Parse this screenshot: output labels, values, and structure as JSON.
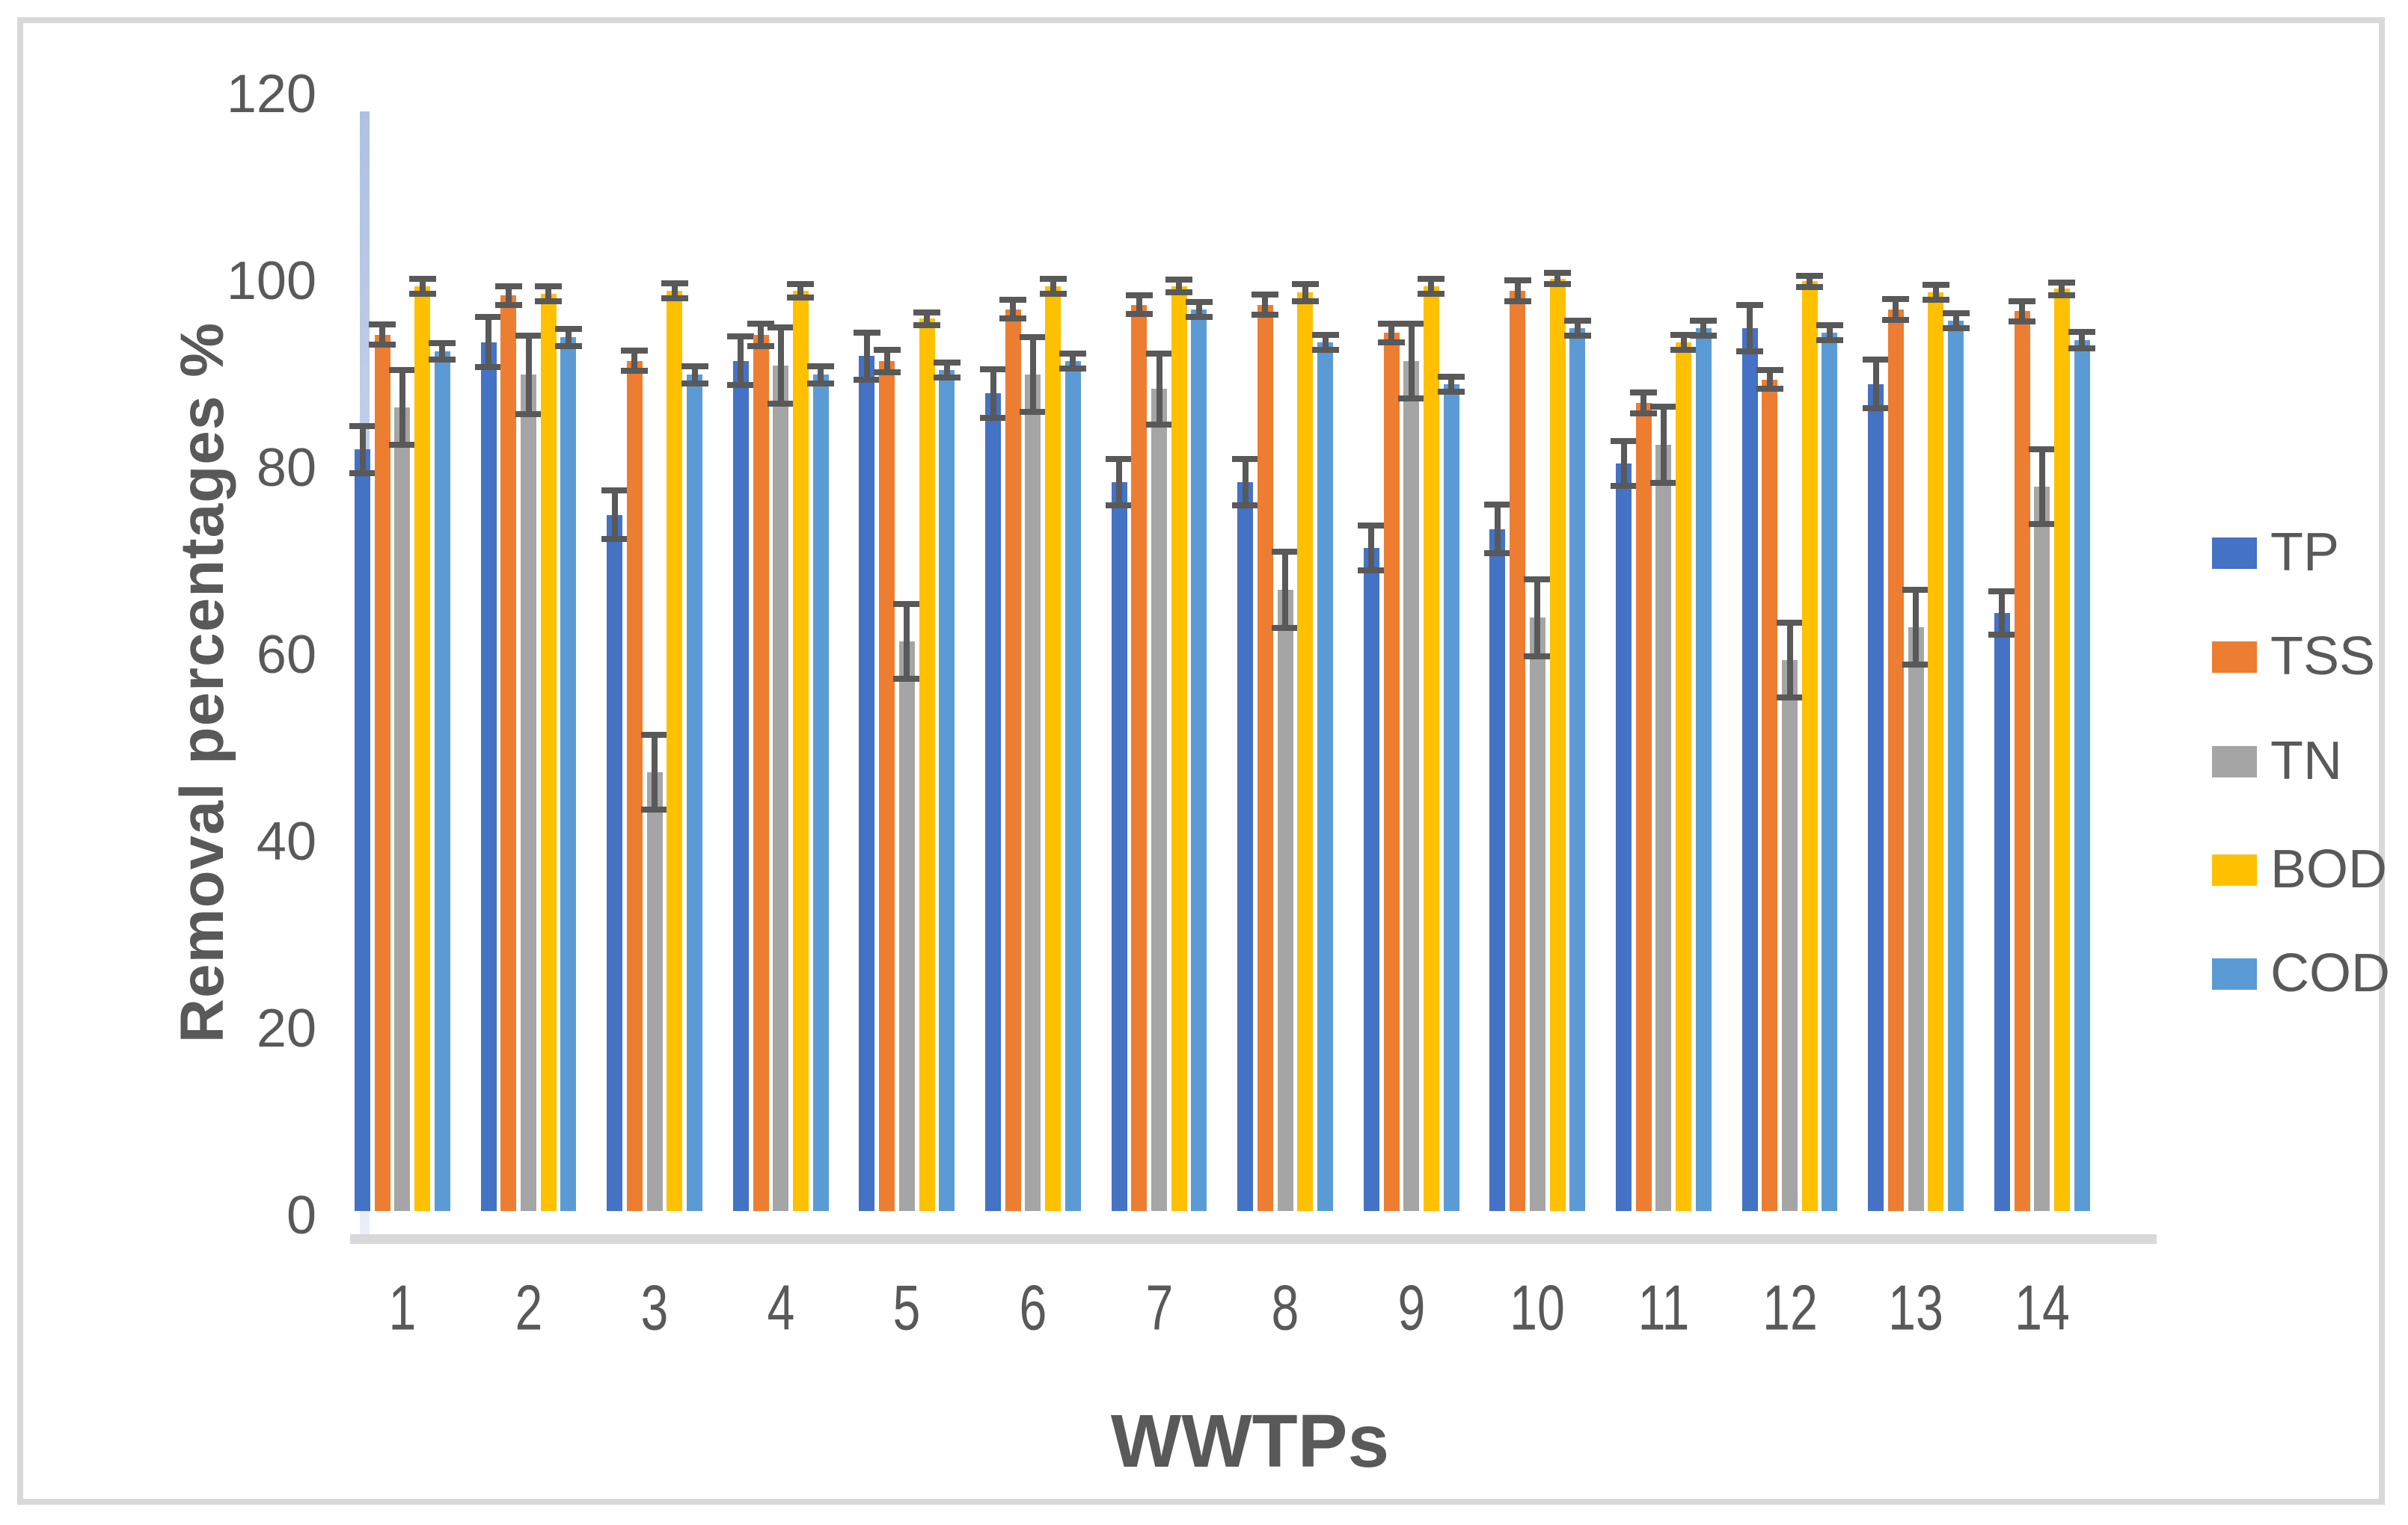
{
  "figure": {
    "y_axis_title": "Removal percentages %",
    "x_axis_title": "WWTPs"
  },
  "colors": {
    "y_axis_line": "#aec1e4",
    "x_axis_line": "#d9d9d9",
    "figure_border": "#d9d9d9",
    "tick_text": "#595959",
    "error_bar": "#595959"
  },
  "chart_data": {
    "type": "bar",
    "title": "",
    "xlabel": "WWTPs",
    "ylabel": "Removal percentages %",
    "categories": [
      "1",
      "2",
      "3",
      "4",
      "5",
      "6",
      "7",
      "8",
      "9",
      "10",
      "11",
      "12",
      "13",
      "14"
    ],
    "ylim": [
      0,
      120
    ],
    "ytick_step": 20,
    "yticks": [
      "0",
      "20",
      "40",
      "60",
      "80",
      "100",
      "120"
    ],
    "grid": false,
    "legend_position": "right",
    "error_bars": true,
    "error_bar_color": "#595959",
    "series": [
      {
        "name": "TP",
        "color": "#4472C4",
        "values": [
          81.5,
          93,
          74.5,
          91,
          91.5,
          87.5,
          78,
          78,
          71,
          73,
          80,
          94.5,
          88.5,
          64
        ],
        "errors": [
          2.5,
          2.7,
          2.6,
          2.6,
          2.5,
          2.6,
          2.5,
          2.5,
          2.4,
          2.6,
          2.4,
          2.5,
          2.6,
          2.3
        ]
      },
      {
        "name": "TSS",
        "color": "#ED7D31",
        "values": [
          93.8,
          98,
          91,
          93.8,
          91,
          96.5,
          97,
          97,
          94,
          98.5,
          86.5,
          89,
          96.5,
          96.3
        ],
        "errors": [
          1.1,
          1,
          1.1,
          1.2,
          1.2,
          1,
          1,
          1.1,
          1,
          1.1,
          1.1,
          1,
          1.1,
          1.1
        ]
      },
      {
        "name": "TN",
        "color": "#A5A5A5",
        "values": [
          86,
          89.5,
          47,
          90.5,
          61,
          89.5,
          88,
          66.5,
          91,
          63.5,
          82,
          59,
          62.5,
          77.5
        ],
        "errors": [
          4,
          4.2,
          4,
          4.1,
          4,
          4,
          3.8,
          4.1,
          4,
          4.1,
          4.1,
          4,
          4,
          4
        ]
      },
      {
        "name": "BOD",
        "color": "#FFC000",
        "values": [
          99,
          98.2,
          98.5,
          98.5,
          95.5,
          99,
          99,
          98.3,
          99,
          99.8,
          93,
          99.5,
          98.3,
          98.7
        ],
        "errors": [
          0.8,
          0.8,
          0.8,
          0.7,
          0.7,
          0.8,
          0.7,
          0.9,
          0.8,
          0.6,
          0.8,
          0.6,
          0.8,
          0.7
        ]
      },
      {
        "name": "COD",
        "color": "#5B9BD5",
        "values": [
          92,
          93.5,
          89.5,
          89.5,
          90,
          91,
          96.5,
          93,
          88.5,
          94.5,
          94.5,
          94,
          95.3,
          93.2
        ],
        "errors": [
          0.9,
          0.9,
          0.9,
          0.9,
          0.8,
          0.8,
          0.8,
          0.8,
          0.8,
          0.8,
          0.8,
          0.8,
          0.8,
          0.9
        ]
      }
    ]
  }
}
